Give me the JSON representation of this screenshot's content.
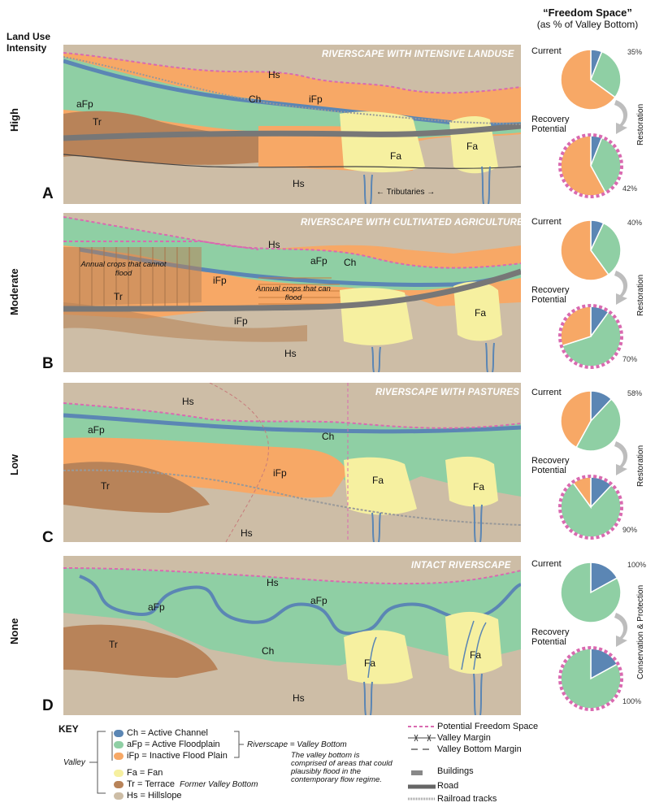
{
  "header": {
    "left_line1": "Land Use",
    "left_line2": "Intensity",
    "right_title": "“Freedom Space”",
    "right_subtitle": "(as % of  Valley Bottom)"
  },
  "panels": [
    {
      "letter": "A",
      "intensity": "High",
      "title": "RIVERSCAPE WITH INTENSIVE LANDUSE",
      "labels": {
        "hs_top": "Hs",
        "afp": "aFp",
        "ch": "Ch",
        "ifp": "iFp",
        "tr": "Tr",
        "fa1": "Fa",
        "fa2": "Fa",
        "hs_bot": "Hs",
        "trib": "Tributaries"
      },
      "current_pct": "35%",
      "recovery_pct": "42%",
      "action": "Restoration"
    },
    {
      "letter": "B",
      "intensity": "Moderate",
      "title": "RIVERSCAPE WITH CULTIVATED AGRICULTURE",
      "labels": {
        "hs_top": "Hs",
        "afp": "aFp",
        "ch": "Ch",
        "ifp": "iFp",
        "tr": "Tr",
        "ifp2": "iFp",
        "fa": "Fa",
        "hs_bot": "Hs",
        "crops1": "Annual crops that cannot flood",
        "crops2": "Annual crops that can flood"
      },
      "current_pct": "40%",
      "recovery_pct": "70%",
      "action": "Restoration"
    },
    {
      "letter": "C",
      "intensity": "Low",
      "title": "RIVERSCAPE WITH PASTURES",
      "labels": {
        "hs_top": "Hs",
        "afp": "aFp",
        "ch": "Ch",
        "ifp": "iFp",
        "tr": "Tr",
        "fa1": "Fa",
        "fa2": "Fa",
        "hs_bot": "Hs"
      },
      "current_pct": "58%",
      "recovery_pct": "90%",
      "action": "Restoration"
    },
    {
      "letter": "D",
      "intensity": "None",
      "title": "INTACT RIVERSCAPE",
      "labels": {
        "hs_top": "Hs",
        "afp": "aFp",
        "afp2": "aFp",
        "ch": "Ch",
        "tr": "Tr",
        "fa1": "Fa",
        "fa2": "Fa",
        "hs_bot": "Hs"
      },
      "current_pct": "100%",
      "recovery_pct": "100%",
      "action": "Conservation & Protection"
    }
  ],
  "pie_labels": {
    "current": "Current",
    "recovery_1": "Recovery",
    "recovery_2": "Potential"
  },
  "pie_values": [
    {
      "current": {
        "ch": 0.06,
        "afp": 0.29,
        "ifp": 0.65
      },
      "recovery": {
        "ch": 0.06,
        "afp": 0.36,
        "ifp": 0.58
      }
    },
    {
      "current": {
        "ch": 0.07,
        "afp": 0.33,
        "ifp": 0.6
      },
      "recovery": {
        "ch": 0.1,
        "afp": 0.6,
        "ifp": 0.3
      }
    },
    {
      "current": {
        "ch": 0.12,
        "afp": 0.46,
        "ifp": 0.42
      },
      "recovery": {
        "ch": 0.12,
        "afp": 0.78,
        "ifp": 0.1
      }
    },
    {
      "current": {
        "ch": 0.17,
        "afp": 0.83,
        "ifp": 0.0
      },
      "recovery": {
        "ch": 0.17,
        "afp": 0.83,
        "ifp": 0.0
      }
    }
  ],
  "colors": {
    "ch": "#5b86b4",
    "afp": "#8fcfa4",
    "ifp": "#f7a866",
    "fa": "#f6f0a0",
    "tr": "#b88359",
    "hs": "#cdbda6",
    "freedom": "#d96ab0"
  },
  "key": {
    "title": "KEY",
    "ch": "Ch = Active Channel",
    "afp": "aFp = Active Floodplain",
    "ifp": "iFp = Inactive Flood Plain",
    "fa": "Fa = Fan",
    "tr": "Tr = Terrace",
    "tr_note": "Former Valley Bottom",
    "hs": "Hs = Hillslope",
    "valley": "Valley",
    "riverscape": "Riverscape = Valley Bottom",
    "riverscape_note": "The valley bottom is comprised of areas that could plausibly flood in the contemporary flow regime.",
    "freedom": "Potential Freedom Space",
    "valley_margin": "Valley Margin",
    "vb_margin": "Valley Bottom Margin",
    "buildings": "Buildings",
    "road": "Road",
    "rail": "Railroad tracks"
  }
}
